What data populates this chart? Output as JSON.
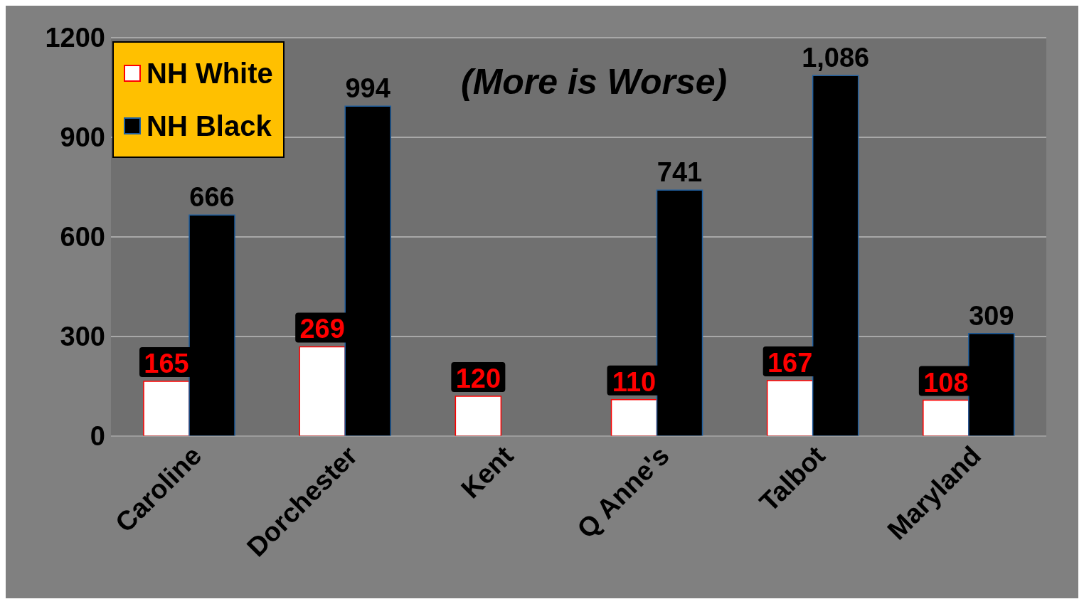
{
  "chart_data": {
    "type": "bar",
    "categories": [
      "Caroline",
      "Dorchester",
      "Kent",
      "Q Anne's",
      "Talbot",
      "Maryland"
    ],
    "series": [
      {
        "name": "NH White",
        "color": "#ffffff",
        "values": [
          165,
          269,
          120,
          110,
          167,
          108
        ],
        "value_labels": [
          "165",
          "269",
          "120",
          "110",
          "167",
          "108"
        ]
      },
      {
        "name": "NH Black",
        "color": "#000000",
        "values": [
          666,
          994,
          null,
          741,
          1086,
          309
        ],
        "value_labels": [
          "666",
          "994",
          null,
          "741",
          "1,086",
          "309"
        ]
      }
    ],
    "annotations": [
      "(More is Worse)"
    ],
    "ylim": [
      0,
      1200
    ],
    "yticks": [
      0,
      300,
      600,
      900,
      1200
    ],
    "grid": "y",
    "legend": "top left"
  }
}
